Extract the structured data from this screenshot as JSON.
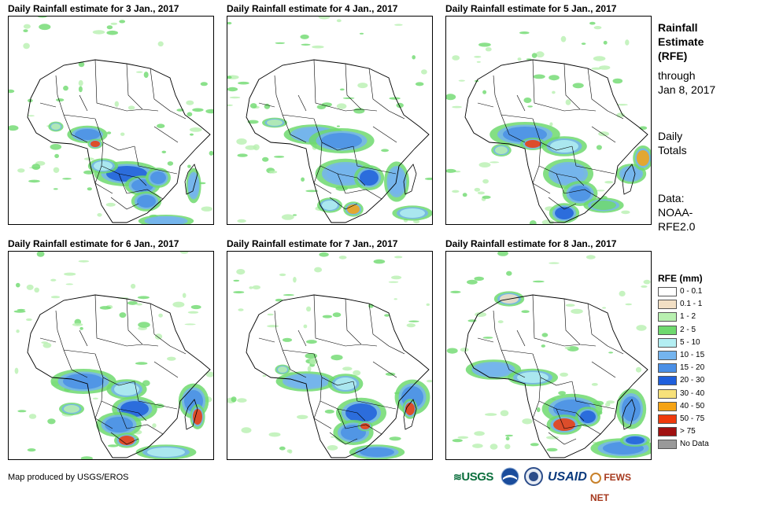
{
  "panels": [
    {
      "title": "Daily Rainfall estimate for 3 Jan., 2017"
    },
    {
      "title": "Daily Rainfall estimate for 4 Jan., 2017"
    },
    {
      "title": "Daily Rainfall estimate for 5 Jan., 2017"
    },
    {
      "title": "Daily Rainfall estimate for 6 Jan., 2017"
    },
    {
      "title": "Daily Rainfall estimate for 7 Jan., 2017"
    },
    {
      "title": "Daily Rainfall estimate for 8 Jan., 2017"
    }
  ],
  "sidebar": {
    "title_line1": "Rainfall",
    "title_line2": "Estimate",
    "title_line3": "(RFE)",
    "through": "through",
    "through_date": "Jan 8, 2017",
    "daily1": "Daily",
    "daily2": "Totals",
    "data1": "Data:",
    "data2": "NOAA-",
    "data3": "RFE2.0"
  },
  "legend": {
    "title": "RFE (mm)",
    "items": [
      {
        "label": "0 - 0.1",
        "color": "#ffffff"
      },
      {
        "label": "0.1 - 1",
        "color": "#f2dfc4"
      },
      {
        "label": "1 - 2",
        "color": "#b8f0b0"
      },
      {
        "label": "2 - 5",
        "color": "#6ed96e"
      },
      {
        "label": "5 - 10",
        "color": "#b3eef2"
      },
      {
        "label": "10 - 15",
        "color": "#74b4ee"
      },
      {
        "label": "15 - 20",
        "color": "#4a8fe6"
      },
      {
        "label": "20 - 30",
        "color": "#1f5fdc"
      },
      {
        "label": "30 - 40",
        "color": "#f7e17a"
      },
      {
        "label": "40 - 50",
        "color": "#f5a314"
      },
      {
        "label": "50 - 75",
        "color": "#ee3a0c"
      },
      {
        "label": "> 75",
        "color": "#a01010"
      },
      {
        "label": "No Data",
        "color": "#999999"
      }
    ]
  },
  "credit": "Map produced by USGS/EROS",
  "logos": {
    "usgs": "USGS",
    "noaa": "NOAA",
    "dos": "",
    "usaid": "USAID",
    "fewsnet": "FEWS NET"
  }
}
